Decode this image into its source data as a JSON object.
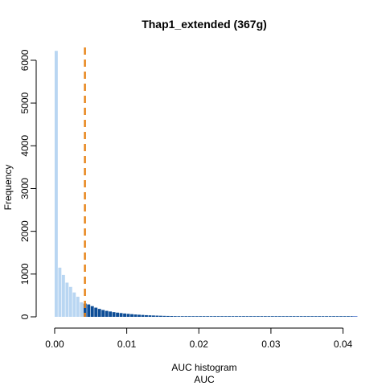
{
  "chart_data": {
    "type": "bar",
    "title": "Thap1_extended (367g)",
    "ylabel": "Frequency",
    "xlabel_line1": "AUC histogram",
    "xlabel_line2": "AUC",
    "xlim": [
      -0.001,
      0.0415
    ],
    "ylim": [
      0,
      6300
    ],
    "x_ticks": [
      0.0,
      0.01,
      0.02,
      0.03,
      0.04
    ],
    "x_tick_labels": [
      "0.00",
      "0.01",
      "0.02",
      "0.03",
      "0.04"
    ],
    "y_ticks": [
      0,
      1000,
      2000,
      3000,
      4000,
      5000,
      6000
    ],
    "y_tick_labels": [
      "0",
      "1000",
      "2000",
      "3000",
      "4000",
      "5000",
      "6000"
    ],
    "bin_width": 0.0005,
    "bin_start": 0.0,
    "values": [
      6220,
      1150,
      980,
      800,
      700,
      570,
      470,
      340,
      310,
      290,
      250,
      215,
      185,
      160,
      140,
      125,
      110,
      98,
      88,
      78,
      70,
      62,
      55,
      49,
      44,
      39,
      35,
      31,
      28,
      25,
      22,
      20,
      18,
      16,
      15,
      13,
      12,
      11,
      10,
      9,
      8,
      8,
      7,
      7,
      6,
      6,
      5,
      5,
      5,
      4,
      4,
      4,
      4,
      3,
      3,
      3,
      3,
      3,
      3,
      2,
      2,
      2,
      2,
      2,
      2,
      2,
      2,
      2,
      2,
      2,
      1,
      1,
      1,
      1,
      1,
      1,
      1,
      1,
      1,
      1,
      1,
      1,
      1,
      1
    ],
    "threshold": 0.0042,
    "colors": {
      "below_threshold": "#b9d6f2",
      "above_threshold": "#0d4d96",
      "threshold_line": "#e8851a",
      "tail_line": "#6f8fd6",
      "axis": "#000000"
    },
    "grid": false,
    "legend": "none"
  }
}
